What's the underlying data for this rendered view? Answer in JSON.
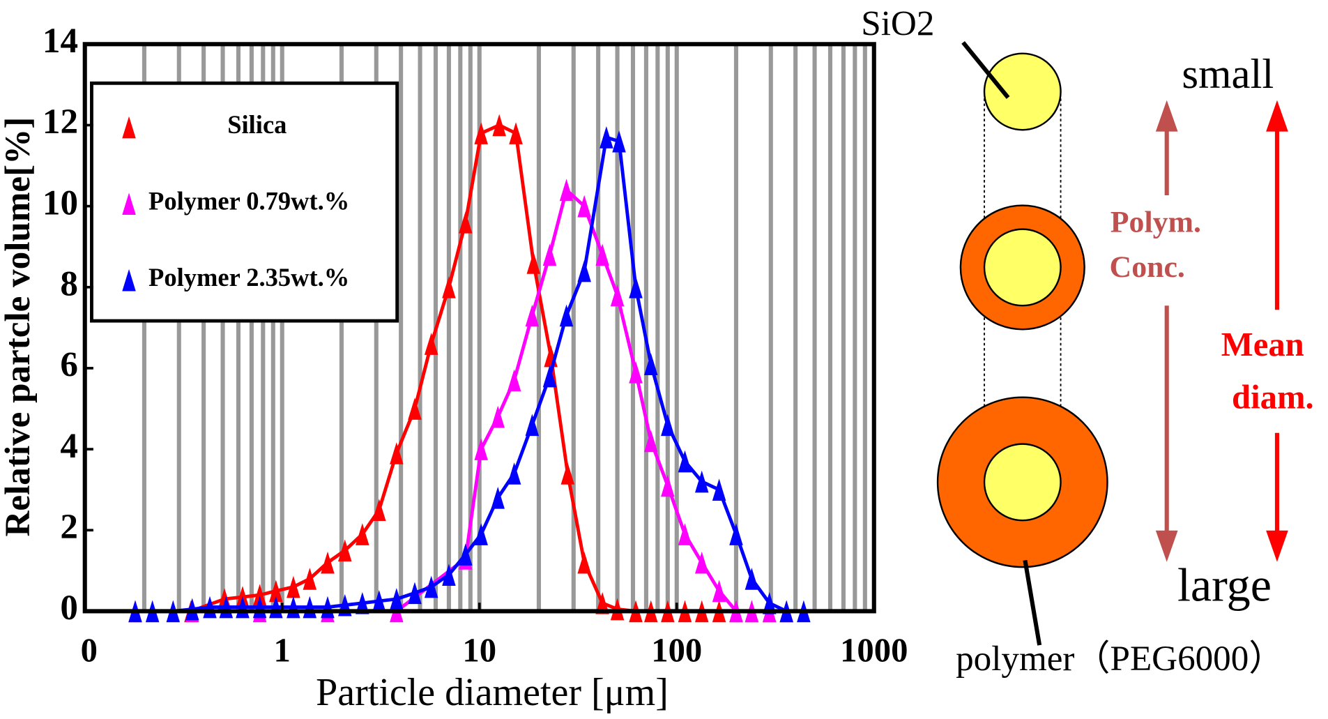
{
  "chart_data": {
    "type": "line",
    "x_label": "Particle diameter [μm]",
    "y_label": "Relative partcle volume[%]",
    "log_x": true,
    "grid": true,
    "legend": "upper left",
    "xlim": [
      0.1,
      1000
    ],
    "xticks": [
      {
        "value": 0.1,
        "label": "0"
      },
      1,
      10,
      100,
      1000
    ],
    "ylim": [
      0,
      14
    ],
    "yticks": [
      0,
      2,
      4,
      6,
      8,
      10,
      12,
      14
    ],
    "series": [
      {
        "name": "Silica",
        "color": "#ff0000",
        "x": [
          0.345,
          0.51,
          0.63,
          0.77,
          0.93,
          1.14,
          1.38,
          1.7,
          2.08,
          2.55,
          3.1,
          3.8,
          4.7,
          5.7,
          7.0,
          8.5,
          10.2,
          12.6,
          15.3,
          18.8,
          23,
          28,
          34,
          42,
          50,
          62,
          74,
          90,
          110,
          134,
          164,
          200,
          240,
          295,
          360
        ],
        "values": [
          0,
          0.3,
          0.35,
          0.4,
          0.5,
          0.6,
          0.8,
          1.2,
          1.5,
          1.9,
          2.5,
          3.9,
          5.0,
          6.6,
          8.0,
          9.6,
          11.8,
          12.0,
          11.8,
          8.6,
          6.3,
          3.4,
          1.2,
          0.2,
          0.05,
          0,
          0,
          0,
          0,
          0,
          0,
          0,
          0,
          0,
          0
        ]
      },
      {
        "name": "Polymer  0.79wt.%",
        "color": "#ff00ff",
        "x": [
          0.18,
          0.35,
          0.77,
          1.7,
          3.8,
          8.5,
          10.2,
          12.4,
          15,
          18.5,
          22.7,
          27.6,
          34,
          42,
          50,
          62,
          74,
          90,
          110,
          134,
          164,
          200,
          240,
          295
        ],
        "values": [
          0,
          0,
          0,
          0,
          0,
          1.3,
          4.0,
          4.8,
          5.7,
          7.3,
          8.8,
          10.4,
          10.0,
          8.8,
          7.8,
          5.9,
          4.2,
          3.1,
          1.9,
          1.2,
          0.5,
          0,
          0,
          0
        ]
      },
      {
        "name": "Polymer  2.35wt.%",
        "color": "#0000ff",
        "x": [
          0.18,
          0.22,
          0.28,
          0.35,
          0.43,
          0.52,
          0.63,
          0.77,
          0.93,
          1.14,
          1.38,
          1.7,
          2.08,
          2.55,
          3.1,
          3.8,
          4.7,
          5.7,
          7.0,
          8.5,
          10.2,
          12.4,
          15,
          18.5,
          22.7,
          27.6,
          34,
          44,
          51,
          62,
          74,
          90,
          110,
          134,
          164,
          200,
          240,
          295,
          360,
          440
        ],
        "values": [
          0,
          0,
          0,
          0.05,
          0.1,
          0.1,
          0.1,
          0.1,
          0.1,
          0.1,
          0.1,
          0.1,
          0.15,
          0.2,
          0.25,
          0.3,
          0.45,
          0.6,
          0.9,
          1.4,
          1.9,
          2.8,
          3.4,
          4.6,
          5.8,
          7.3,
          8.4,
          11.7,
          11.6,
          8.0,
          6.1,
          4.6,
          3.7,
          3.2,
          3.0,
          1.9,
          0.8,
          0.2,
          0,
          0
        ]
      }
    ]
  },
  "diagram": {
    "core_label": "SiO2",
    "top_label": "small",
    "bottom_label": "large",
    "left_arrow_label": [
      "Polym.",
      "Conc."
    ],
    "right_arrow_label": [
      "Mean",
      "diam."
    ],
    "shell_label": "polymer（PEG6000）"
  }
}
